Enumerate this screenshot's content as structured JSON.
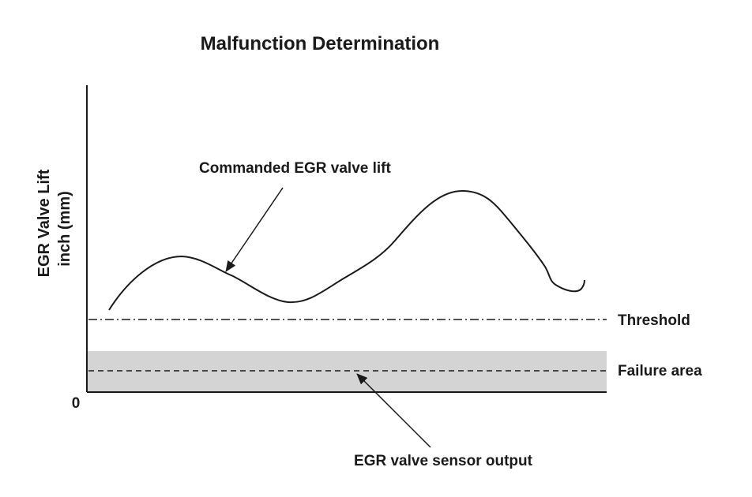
{
  "diagram": {
    "title": "Malfunction Determination",
    "y_axis_label_line1": "EGR Valve Lift",
    "y_axis_label_line2": "inch (mm)",
    "origin_label": "0",
    "threshold_label": "Threshold",
    "failure_area_label": "Failure area",
    "commanded_lift_label": "Commanded EGR valve lift",
    "sensor_output_label": "EGR valve sensor output",
    "colors": {
      "line": "#1a1a1a",
      "failure_area_fill": "#d4d4d4",
      "background": "#ffffff"
    }
  }
}
